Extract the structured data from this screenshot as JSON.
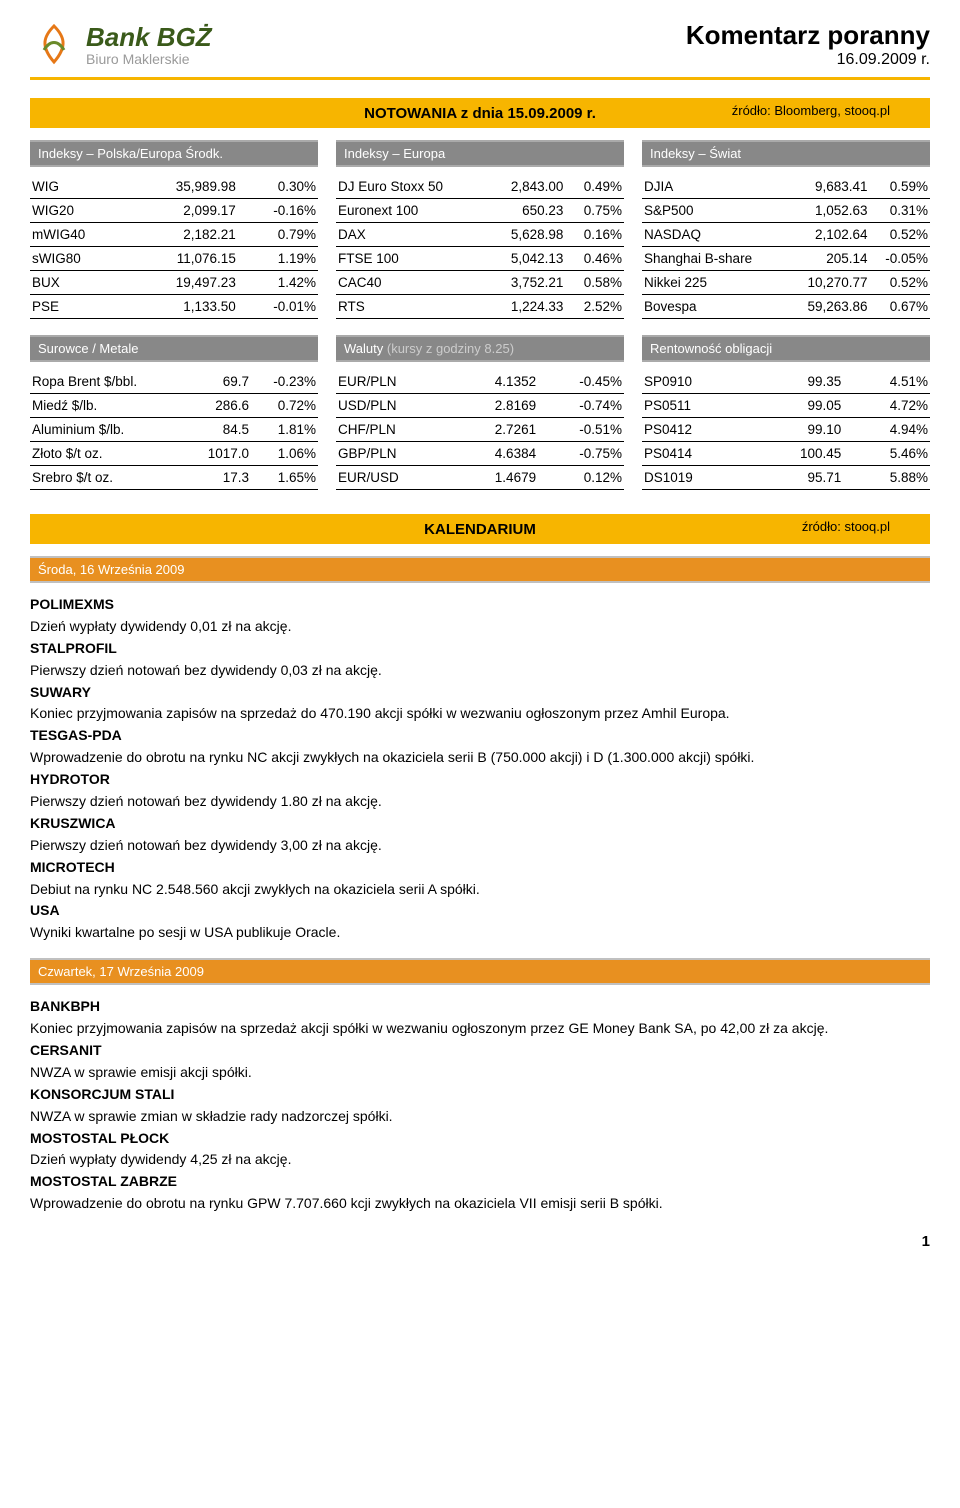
{
  "header": {
    "logo_bank": "Bank BGŻ",
    "logo_sub": "Biuro Maklerskie",
    "title": "Komentarz poranny",
    "date": "16.09.2009 r."
  },
  "notowania_bar": {
    "center": "NOTOWANIA z dnia 15.09.2009 r.",
    "right": "źródło: Bloomberg, stooq.pl"
  },
  "tables_top": {
    "col1": {
      "head": "Indeksy – Polska/Europa Środk.",
      "rows": [
        [
          "WIG",
          "35,989.98",
          "0.30%"
        ],
        [
          "WIG20",
          "2,099.17",
          "-0.16%"
        ],
        [
          "mWIG40",
          "2,182.21",
          "0.79%"
        ],
        [
          "sWIG80",
          "11,076.15",
          "1.19%"
        ],
        [
          "BUX",
          "19,497.23",
          "1.42%"
        ],
        [
          "PSE",
          "1,133.50",
          "-0.01%"
        ]
      ]
    },
    "col2": {
      "head": "Indeksy – Europa",
      "rows": [
        [
          "DJ Euro Stoxx 50",
          "2,843.00",
          "0.49%"
        ],
        [
          "Euronext 100",
          "650.23",
          "0.75%"
        ],
        [
          "DAX",
          "5,628.98",
          "0.16%"
        ],
        [
          "FTSE 100",
          "5,042.13",
          "0.46%"
        ],
        [
          "CAC40",
          "3,752.21",
          "0.58%"
        ],
        [
          "RTS",
          "1,224.33",
          "2.52%"
        ]
      ]
    },
    "col3": {
      "head": "Indeksy – Świat",
      "rows": [
        [
          "DJIA",
          "9,683.41",
          "0.59%"
        ],
        [
          "S&P500",
          "1,052.63",
          "0.31%"
        ],
        [
          "NASDAQ",
          "2,102.64",
          "0.52%"
        ],
        [
          "Shanghai B-share",
          "205.14",
          "-0.05%"
        ],
        [
          "Nikkei 225",
          "10,270.77",
          "0.52%"
        ],
        [
          "Bovespa",
          "59,263.86",
          "0.67%"
        ]
      ]
    }
  },
  "tables_bottom": {
    "col1": {
      "head": "Surowce / Metale",
      "rows": [
        [
          "Ropa Brent $/bbl.",
          "69.7",
          "-0.23%"
        ],
        [
          "Miedź $/lb.",
          "286.6",
          "0.72%"
        ],
        [
          "Aluminium $/lb.",
          "84.5",
          "1.81%"
        ],
        [
          "Złoto $/t oz.",
          "1017.0",
          "1.06%"
        ],
        [
          "Srebro $/t oz.",
          "17.3",
          "1.65%"
        ]
      ]
    },
    "col2": {
      "head_main": "Waluty ",
      "head_fade": "(kursy z godziny 8.25)",
      "rows": [
        [
          "EUR/PLN",
          "4.1352",
          "-0.45%"
        ],
        [
          "USD/PLN",
          "2.8169",
          "-0.74%"
        ],
        [
          "CHF/PLN",
          "2.7261",
          "-0.51%"
        ],
        [
          "GBP/PLN",
          "4.6384",
          "-0.75%"
        ],
        [
          "EUR/USD",
          "1.4679",
          "0.12%"
        ]
      ]
    },
    "col3": {
      "head": "Rentowność obligacji",
      "rows": [
        [
          "SP0910",
          "99.35",
          "4.51%"
        ],
        [
          "PS0511",
          "99.05",
          "4.72%"
        ],
        [
          "PS0412",
          "99.10",
          "4.94%"
        ],
        [
          "PS0414",
          "100.45",
          "5.46%"
        ],
        [
          "DS1019",
          "95.71",
          "5.88%"
        ]
      ]
    }
  },
  "kalendarium_bar": {
    "center": "KALENDARIUM",
    "right": "źródło: stooq.pl"
  },
  "day1": {
    "head": "Środa, 16 Września 2009",
    "items": [
      {
        "k": "POLIMEXMS",
        "t": "Dzień wypłaty dywidendy 0,01 zł na akcję."
      },
      {
        "k": "STALPROFIL",
        "t": "Pierwszy dzień notowań bez dywidendy 0,03 zł na akcję."
      },
      {
        "k": "SUWARY",
        "t": "Koniec przyjmowania zapisów na sprzedaż do 470.190 akcji spółki w wezwaniu ogłoszonym przez Amhil Europa."
      },
      {
        "k": "TESGAS-PDA",
        "t": "Wprowadzenie do obrotu na rynku NC akcji zwykłych na okaziciela serii B (750.000 akcji) i D (1.300.000 akcji) spółki."
      },
      {
        "k": "HYDROTOR",
        "t": "Pierwszy dzień notowań bez dywidendy 1.80 zł na akcję."
      },
      {
        "k": "KRUSZWICA",
        "t": "Pierwszy dzień notowań bez dywidendy 3,00 zł na akcję."
      },
      {
        "k": "MICROTECH",
        "t": "Debiut na rynku NC 2.548.560 akcji zwykłych na okaziciela serii A spółki."
      },
      {
        "k": "USA",
        "t": "Wyniki kwartalne po sesji w USA publikuje Oracle."
      }
    ]
  },
  "day2": {
    "head": "Czwartek, 17 Września 2009",
    "items": [
      {
        "k": "BANKBPH",
        "t": "Koniec przyjmowania zapisów na sprzedaż akcji spółki w wezwaniu ogłoszonym przez GE Money Bank SA, po 42,00 zł za akcję."
      },
      {
        "k": "CERSANIT",
        "t": "NWZA w sprawie emisji akcji spółki."
      },
      {
        "k": "KONSORCJUM STALI",
        "t": "NWZA w sprawie zmian w składzie rady nadzorczej spółki."
      },
      {
        "k": "MOSTOSTAL PŁOCK",
        "t": "Dzień wypłaty dywidendy 4,25 zł na akcję."
      },
      {
        "k": "MOSTOSTAL ZABRZE",
        "t": "Wprowadzenie do obrotu na rynku GPW 7.707.660 kcji zwykłych na okaziciela VII emisji serii B spółki."
      }
    ]
  },
  "pagenum": "1",
  "colors": {
    "orange_bar": "#f7b500",
    "grey_head": "#888888",
    "day_head": "#e89020"
  }
}
